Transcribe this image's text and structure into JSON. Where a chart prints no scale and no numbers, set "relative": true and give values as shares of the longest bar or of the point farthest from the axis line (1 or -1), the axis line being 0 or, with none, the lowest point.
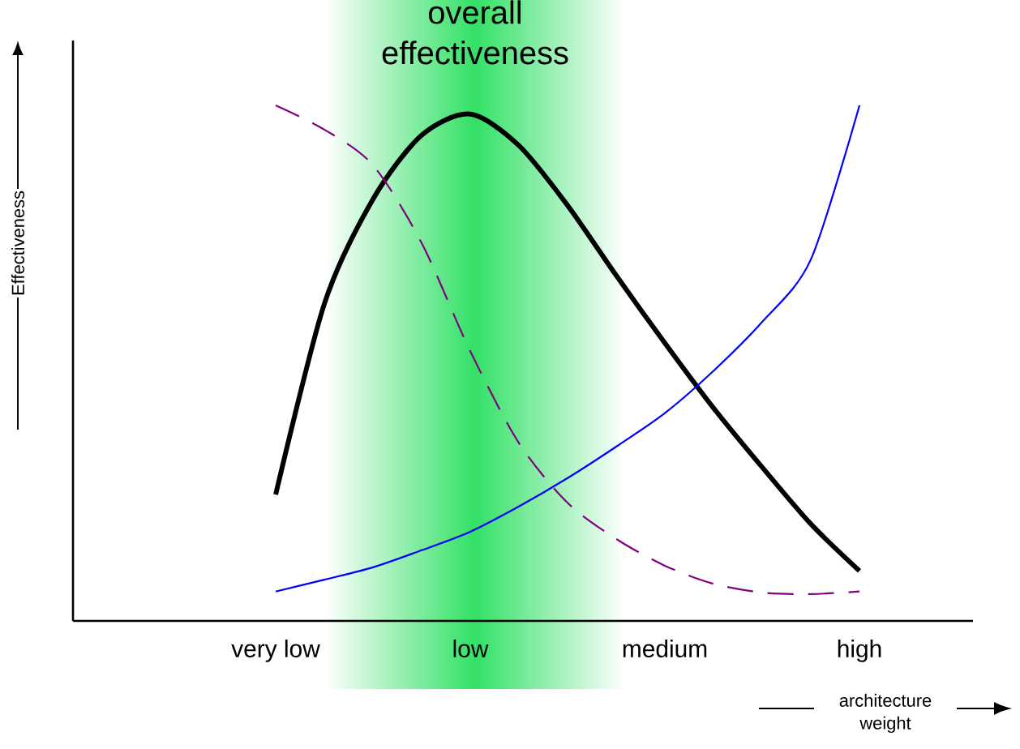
{
  "chart_data": {
    "type": "line",
    "relative": true,
    "xlabel": "architecture weight",
    "annotations": [
      "overall effectiveness",
      "Effectiveness"
    ],
    "categories": [
      "very low",
      null,
      null,
      null,
      "low",
      null,
      null,
      null,
      "medium",
      null,
      null,
      null,
      "high"
    ],
    "series": [
      {
        "color": "#000000",
        "line_style": "solid",
        "values": [
          0.245,
          0.615,
          0.818,
          0.942,
          0.983,
          0.922,
          0.806,
          0.67,
          0.539,
          0.413,
          0.298,
          0.188,
          0.097
        ]
      },
      {
        "color": "#0000ff",
        "line_style": "solid",
        "values": [
          0.057,
          0.08,
          0.104,
          0.137,
          0.173,
          0.222,
          0.277,
          0.338,
          0.403,
          0.485,
          0.58,
          0.701,
          1.0
        ]
      },
      {
        "color": "#800080",
        "line_style": "dashed",
        "values": [
          1.0,
          0.953,
          0.884,
          0.733,
          0.523,
          0.345,
          0.229,
          0.159,
          0.107,
          0.072,
          0.055,
          0.052,
          0.057
        ]
      }
    ]
  }
}
